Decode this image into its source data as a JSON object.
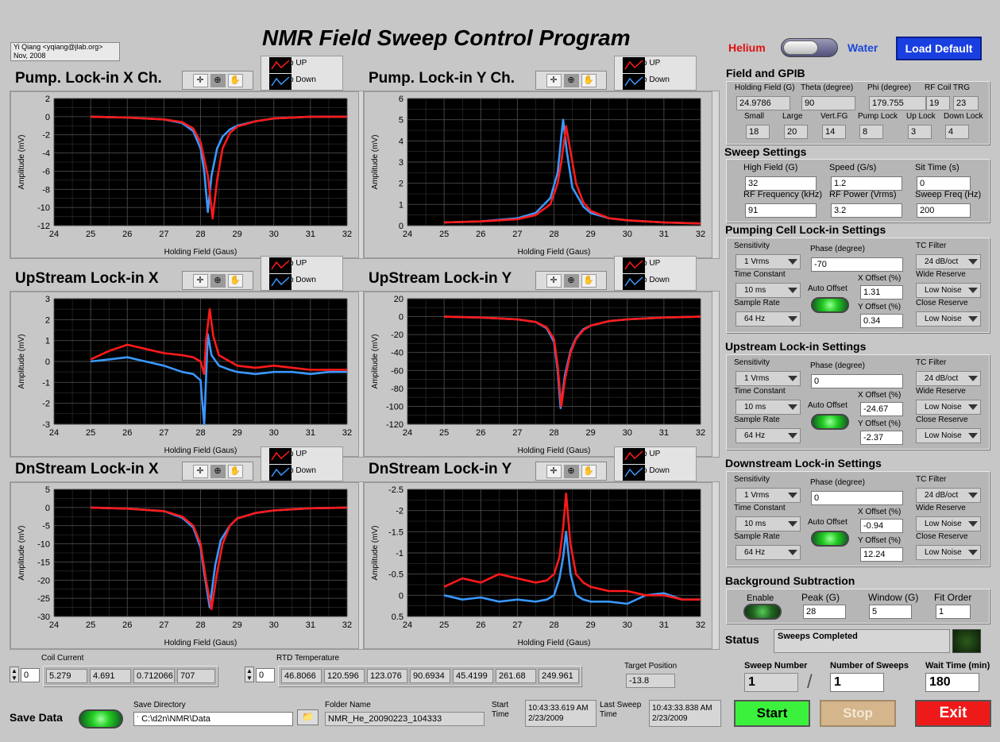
{
  "author": {
    "line1": "Yi Qiang <yqiang@jlab.org>",
    "line2": "Nov, 2008"
  },
  "title": "NMR Field Sweep Control Program",
  "mode": {
    "left": "Helium",
    "right": "Water"
  },
  "load_default": "Load Default",
  "legend": {
    "up": "Sweep UP",
    "down": "Sweep Down"
  },
  "colors": {
    "up": "#ff1a1a",
    "down": "#3a98ff",
    "plot_bg": "#000000",
    "grid": "#4a4a4a"
  },
  "plots": [
    {
      "title": "Pump. Lock-in X Ch.",
      "xlabel": "Holding Field (Gaus)",
      "ylabel": "Amplitude (mV)"
    },
    {
      "title": "Pump. Lock-in Y Ch.",
      "xlabel": "Holding Field (Gaus)",
      "ylabel": "Amplitude (mV)"
    },
    {
      "title": "UpStream Lock-in X",
      "xlabel": "Holding Field (Gaus)",
      "ylabel": "Amplitude (mV)"
    },
    {
      "title": "UpStream Lock-in Y",
      "xlabel": "Holding Field (Gaus)",
      "ylabel": "Amplitude (mV)"
    },
    {
      "title": "DnStream Lock-in X",
      "xlabel": "Holding Field (Gaus)",
      "ylabel": "Amplitude (mV)"
    },
    {
      "title": "DnStream Lock-in Y",
      "xlabel": "Holding Field (Gaus)",
      "ylabel": "Amplitude (mV)"
    }
  ],
  "chart_data": [
    {
      "type": "line",
      "title": "Pump. Lock-in X Ch.",
      "xlabel": "Holding Field (Gaus)",
      "ylabel": "Amplitude (mV)",
      "xlim": [
        24,
        32
      ],
      "ylim": [
        -12,
        2
      ],
      "xticks": [
        "24",
        "25",
        "26",
        "27",
        "28",
        "29",
        "30",
        "31",
        "32"
      ],
      "yticks": [
        "2",
        "0",
        "-2",
        "-4",
        "-6",
        "-8",
        "-10",
        "-12"
      ],
      "grid": true,
      "series": [
        {
          "name": "Sweep UP",
          "x": [
            25,
            26,
            27,
            27.5,
            27.8,
            28,
            28.2,
            28.33,
            28.45,
            28.6,
            28.8,
            29,
            29.5,
            30,
            31,
            32
          ],
          "y": [
            0,
            -0.1,
            -0.3,
            -0.6,
            -1.3,
            -2.8,
            -6.5,
            -11.2,
            -7,
            -3.5,
            -1.8,
            -1.1,
            -0.5,
            -0.2,
            0,
            0
          ]
        },
        {
          "name": "Sweep Down",
          "x": [
            25,
            26,
            27,
            27.5,
            27.8,
            28,
            28.1,
            28.2,
            28.3,
            28.45,
            28.6,
            28.8,
            29,
            29.5,
            30,
            31,
            32
          ],
          "y": [
            0,
            -0.1,
            -0.3,
            -0.7,
            -1.6,
            -3.5,
            -6,
            -10.5,
            -6.5,
            -3.5,
            -2.2,
            -1.4,
            -1,
            -0.5,
            -0.2,
            0,
            0
          ]
        }
      ]
    },
    {
      "type": "line",
      "title": "Pump. Lock-in Y Ch.",
      "xlabel": "Holding Field (Gaus)",
      "ylabel": "Amplitude (mV)",
      "xlim": [
        24,
        32
      ],
      "ylim": [
        0,
        6
      ],
      "xticks": [
        "24",
        "25",
        "26",
        "27",
        "28",
        "29",
        "30",
        "31",
        "32"
      ],
      "yticks": [
        "6",
        "5",
        "4",
        "3",
        "2",
        "1",
        "0"
      ],
      "grid": true,
      "series": [
        {
          "name": "Sweep UP",
          "x": [
            25,
            26,
            27,
            27.5,
            27.9,
            28.1,
            28.2,
            28.33,
            28.45,
            28.6,
            28.8,
            29,
            29.5,
            30,
            31,
            32
          ],
          "y": [
            0.15,
            0.2,
            0.3,
            0.5,
            1,
            2,
            3,
            4.7,
            3.5,
            2,
            1.1,
            0.7,
            0.35,
            0.25,
            0.15,
            0.1
          ]
        },
        {
          "name": "Sweep Down",
          "x": [
            25,
            26,
            27,
            27.5,
            27.9,
            28.1,
            28.2,
            28.25,
            28.35,
            28.5,
            28.8,
            29,
            29.5,
            30,
            31,
            32
          ],
          "y": [
            0.15,
            0.2,
            0.35,
            0.6,
            1.3,
            2.5,
            4.2,
            5,
            3.5,
            1.8,
            0.9,
            0.6,
            0.35,
            0.25,
            0.15,
            0.1
          ]
        }
      ]
    },
    {
      "type": "line",
      "title": "UpStream Lock-in X",
      "xlabel": "Holding Field (Gaus)",
      "ylabel": "Amplitude (mV)",
      "xlim": [
        24,
        32
      ],
      "ylim": [
        -3,
        3
      ],
      "xticks": [
        "24",
        "25",
        "26",
        "27",
        "28",
        "29",
        "30",
        "31",
        "32"
      ],
      "yticks": [
        "3",
        "2",
        "1",
        "0",
        "-1",
        "-2",
        "-3"
      ],
      "grid": true,
      "series": [
        {
          "name": "Sweep UP",
          "x": [
            25,
            25.5,
            26,
            26.5,
            27,
            27.5,
            27.8,
            28,
            28.1,
            28.15,
            28.25,
            28.35,
            28.5,
            28.8,
            29,
            29.5,
            30,
            30.5,
            31,
            31.5,
            32
          ],
          "y": [
            0.1,
            0.5,
            0.8,
            0.6,
            0.4,
            0.3,
            0.2,
            0,
            -0.6,
            1,
            2.5,
            1.2,
            0.3,
            0,
            -0.2,
            -0.3,
            -0.2,
            -0.3,
            -0.4,
            -0.4,
            -0.4
          ]
        },
        {
          "name": "Sweep Down",
          "x": [
            25,
            25.5,
            26,
            26.5,
            27,
            27.5,
            27.8,
            28,
            28.05,
            28.1,
            28.2,
            28.3,
            28.5,
            28.8,
            29,
            29.5,
            30,
            30.5,
            31,
            31.5,
            32
          ],
          "y": [
            0,
            0.1,
            0.2,
            0,
            -0.2,
            -0.5,
            -0.6,
            -0.9,
            -2,
            -3,
            1.3,
            0.3,
            -0.2,
            -0.4,
            -0.5,
            -0.6,
            -0.5,
            -0.5,
            -0.6,
            -0.5,
            -0.5
          ]
        }
      ]
    },
    {
      "type": "line",
      "title": "UpStream Lock-in Y",
      "xlabel": "Holding Field (Gaus)",
      "ylabel": "Amplitude (mV)",
      "xlim": [
        24,
        32
      ],
      "ylim": [
        -120,
        20
      ],
      "xticks": [
        "24",
        "25",
        "26",
        "27",
        "28",
        "29",
        "30",
        "31",
        "32"
      ],
      "yticks": [
        "20",
        "0",
        "-20",
        "-40",
        "-60",
        "-80",
        "-100",
        "-120"
      ],
      "grid": true,
      "series": [
        {
          "name": "Sweep UP",
          "x": [
            25,
            26,
            27,
            27.5,
            27.8,
            28,
            28.1,
            28.2,
            28.3,
            28.45,
            28.6,
            28.8,
            29,
            29.5,
            30,
            31,
            32
          ],
          "y": [
            0,
            -1,
            -3,
            -6,
            -12,
            -25,
            -55,
            -100,
            -70,
            -40,
            -25,
            -15,
            -10,
            -5,
            -3,
            -1,
            0
          ]
        },
        {
          "name": "Sweep Down",
          "x": [
            25,
            26,
            27,
            27.5,
            27.8,
            28,
            28.1,
            28.18,
            28.3,
            28.45,
            28.6,
            28.8,
            29,
            29.5,
            30,
            31,
            32
          ],
          "y": [
            0,
            -1,
            -3,
            -6,
            -13,
            -28,
            -60,
            -102,
            -65,
            -38,
            -24,
            -14,
            -10,
            -5,
            -3,
            -1,
            0
          ]
        }
      ]
    },
    {
      "type": "line",
      "title": "DnStream Lock-in X",
      "xlabel": "Holding Field (Gaus)",
      "ylabel": "Amplitude (mV)",
      "xlim": [
        24,
        32
      ],
      "ylim": [
        -30,
        5
      ],
      "xticks": [
        "24",
        "25",
        "26",
        "27",
        "28",
        "29",
        "30",
        "31",
        "32"
      ],
      "yticks": [
        "5",
        "0",
        "-5",
        "-10",
        "-15",
        "-20",
        "-25",
        "-30"
      ],
      "grid": true,
      "series": [
        {
          "name": "Sweep UP",
          "x": [
            25,
            26,
            27,
            27.5,
            27.8,
            28,
            28.15,
            28.3,
            28.45,
            28.6,
            28.8,
            29,
            29.5,
            30,
            31,
            32
          ],
          "y": [
            0,
            -0.3,
            -1,
            -2.5,
            -5,
            -10,
            -20,
            -28,
            -18,
            -10,
            -5,
            -3,
            -1.5,
            -0.8,
            -0.2,
            0
          ]
        },
        {
          "name": "Sweep Down",
          "x": [
            25,
            26,
            27,
            27.5,
            27.8,
            28,
            28.1,
            28.25,
            28.4,
            28.55,
            28.8,
            29,
            29.5,
            30,
            31,
            32
          ],
          "y": [
            0,
            -0.3,
            -1,
            -2.8,
            -5.5,
            -11,
            -18,
            -27.5,
            -16,
            -9,
            -5,
            -3,
            -1.5,
            -0.8,
            -0.2,
            0
          ]
        }
      ]
    },
    {
      "type": "line",
      "title": "DnStream Lock-in Y",
      "xlabel": "Holding Field (Gaus)",
      "ylabel": "Amplitude (mV)",
      "xlim": [
        24,
        32
      ],
      "ylim": [
        0.5,
        -2.5
      ],
      "xticks": [
        "24",
        "25",
        "26",
        "27",
        "28",
        "29",
        "30",
        "31",
        "32"
      ],
      "yticks": [
        "-2.5",
        "-2",
        "-1.5",
        "-1",
        "-0.5",
        "0",
        "0.5"
      ],
      "grid": true,
      "series": [
        {
          "name": "Sweep UP",
          "x": [
            25,
            25.5,
            26,
            26.5,
            27,
            27.5,
            27.8,
            28,
            28.15,
            28.25,
            28.33,
            28.45,
            28.6,
            28.8,
            29,
            29.5,
            30,
            30.5,
            31,
            31.5,
            32
          ],
          "y": [
            -0.2,
            -0.4,
            -0.3,
            -0.5,
            -0.4,
            -0.3,
            -0.35,
            -0.5,
            -0.9,
            -1.6,
            -2.4,
            -1.2,
            -0.5,
            -0.3,
            -0.2,
            -0.1,
            -0.1,
            0,
            0,
            0.1,
            0.1
          ]
        },
        {
          "name": "Sweep Down",
          "x": [
            25,
            25.5,
            26,
            26.5,
            27,
            27.5,
            27.8,
            28,
            28.15,
            28.25,
            28.33,
            28.45,
            28.6,
            28.8,
            29,
            29.5,
            30,
            30.5,
            31,
            31.5,
            32
          ],
          "y": [
            0,
            0.1,
            0.05,
            0.15,
            0.1,
            0.15,
            0.1,
            0,
            -0.4,
            -0.9,
            -1.5,
            -0.5,
            0,
            0.1,
            0.15,
            0.15,
            0.2,
            0,
            -0.05,
            0.1,
            0.1
          ]
        }
      ]
    }
  ],
  "field_gpib": {
    "title": "Field and GPIB",
    "row1": [
      {
        "label": "Holding Field (G)",
        "value": "24.9786"
      },
      {
        "label": "Theta (degree)",
        "value": "90"
      },
      {
        "label": "Phi (degree)",
        "value": "179.755"
      },
      {
        "label": "RF Coil TRG",
        "value": "19",
        "value2": "23"
      }
    ],
    "row2": [
      {
        "label": "Small",
        "value": "18"
      },
      {
        "label": "Large",
        "value": "20"
      },
      {
        "label": "Vert.FG",
        "value": "14"
      },
      {
        "label": "Pump Lock",
        "value": "8"
      },
      {
        "label": "Up Lock",
        "value": "3"
      },
      {
        "label": "Down Lock",
        "value": "4"
      }
    ]
  },
  "sweep": {
    "title": "Sweep Settings",
    "items": [
      {
        "label": "High Field (G)",
        "value": "32"
      },
      {
        "label": "Speed (G/s)",
        "value": "1.2"
      },
      {
        "label": "Sit Time (s)",
        "value": "0"
      },
      {
        "label": "RF Frequency (kHz)",
        "value": "91"
      },
      {
        "label": "RF Power (Vrms)",
        "value": "3.2"
      },
      {
        "label": "Sweep Freq (Hz)",
        "value": "200"
      }
    ]
  },
  "lockins": [
    {
      "title": "Pumping Cell Lock-in Settings",
      "sensitivity": "1 Vrms",
      "time_constant": "10 ms",
      "sample_rate": "64 Hz",
      "phase": "-70",
      "x_offset": "1.31",
      "y_offset": "0.34",
      "tc_filter": "24 dB/oct",
      "wide_reserve": "Low Noise",
      "close_reserve": "Low Noise"
    },
    {
      "title": "Upstream Lock-in Settings",
      "sensitivity": "1 Vrms",
      "time_constant": "10 ms",
      "sample_rate": "64 Hz",
      "phase": "0",
      "x_offset": "-24.67",
      "y_offset": "-2.37",
      "tc_filter": "24 dB/oct",
      "wide_reserve": "Low Noise",
      "close_reserve": "Low Noise"
    },
    {
      "title": "Downstream Lock-in Settings",
      "sensitivity": "1 Vrms",
      "time_constant": "10 ms",
      "sample_rate": "64 Hz",
      "phase": "0",
      "x_offset": "-0.94",
      "y_offset": "12.24",
      "tc_filter": "24 dB/oct",
      "wide_reserve": "Low Noise",
      "close_reserve": "Low Noise"
    }
  ],
  "lockin_labels": {
    "sensitivity": "Sensitivity",
    "time_constant": "Time Constant",
    "sample_rate": "Sample Rate",
    "phase": "Phase (degree)",
    "auto_offset": "Auto Offset",
    "x_offset": "X Offset (%)",
    "y_offset": "Y Offset (%)",
    "tc_filter": "TC Filter",
    "wide_reserve": "Wide Reserve",
    "close_reserve": "Close Reserve"
  },
  "background": {
    "title": "Background Subtraction",
    "enable": "Enable",
    "peak_label": "Peak (G)",
    "peak": "28",
    "window_label": "Window (G)",
    "window": "5",
    "fit_label": "Fit Order",
    "fit": "1"
  },
  "status": {
    "label": "Status",
    "text": "Sweeps Completed"
  },
  "sweep_count": {
    "number_label": "Sweep Number",
    "number": "1",
    "count_label": "Number of Sweeps",
    "count": "1",
    "wait_label": "Wait Time (min)",
    "wait": "180",
    "slash": "/"
  },
  "coil": {
    "label": "Coil Current",
    "index": "0",
    "values": [
      "5.279",
      "4.691",
      "0.712066",
      "707"
    ]
  },
  "rtd": {
    "label": "RTD Temperature",
    "index": "0",
    "values": [
      "46.8066",
      "120.596",
      "123.076",
      "90.6934",
      "45.4199",
      "261.68",
      "249.961"
    ]
  },
  "target": {
    "label": "Target Position",
    "value": "-13.8"
  },
  "save": {
    "label": "Save Data",
    "dir_label": "Save Directory",
    "dir": "C:\\d2n\\NMR\\Data",
    "folder_label": "Folder Name",
    "folder": "NMR_He_20090223_104333",
    "start_label": "Start Time",
    "start_time": "10:43:33.619 AM",
    "start_date": "2/23/2009",
    "last_label": "Last Sweep Time",
    "last_time": "10:43:33.838 AM",
    "last_date": "2/23/2009"
  },
  "buttons": {
    "start": "Start",
    "stop": "Stop",
    "exit": "Exit"
  }
}
